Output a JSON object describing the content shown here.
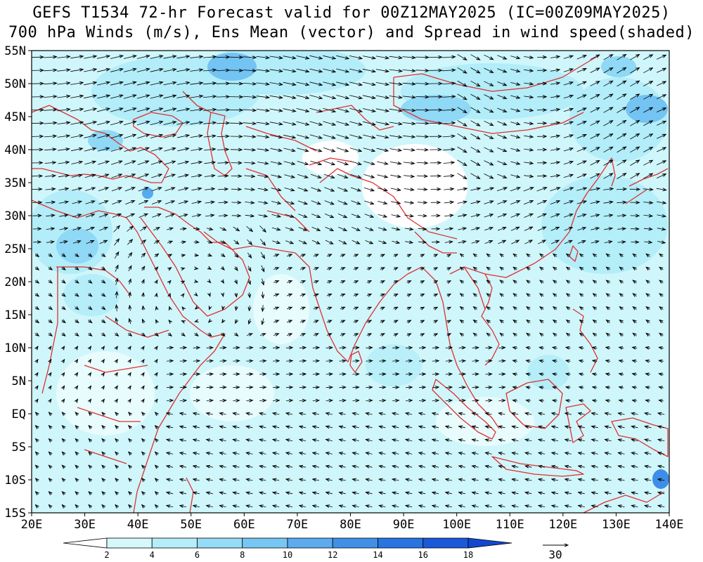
{
  "title_line1": "GEFS T1534 72-hr Forecast valid for 00Z12MAY2025 (IC=00Z09MAY2025)",
  "title_line2": "700 hPa Winds (m/s), Ens Mean (vector) and Spread in wind speed(shaded)",
  "map": {
    "lon_range": [
      20,
      140
    ],
    "lat_range": [
      -15,
      55
    ],
    "lon_ticks": [
      "20E",
      "30E",
      "40E",
      "50E",
      "60E",
      "70E",
      "80E",
      "90E",
      "100E",
      "110E",
      "120E",
      "130E",
      "140E"
    ],
    "lat_ticks": [
      "55N",
      "50N",
      "45N",
      "40N",
      "35N",
      "30N",
      "25N",
      "20N",
      "15N",
      "10N",
      "5N",
      "EQ",
      "5S",
      "10S",
      "15S"
    ],
    "coastline_color": "#e03030",
    "shading_colors": [
      "#ffffff",
      "#cff6fb",
      "#aeecf8",
      "#8fd8f6",
      "#73c3f3",
      "#56aaee",
      "#3d8ee8",
      "#2370e0",
      "#1456d8"
    ]
  },
  "colorbar": {
    "labels": [
      "2",
      "4",
      "6",
      "8",
      "10",
      "12",
      "14",
      "16",
      "18"
    ],
    "colors": [
      "#ffffff",
      "#d6f8fb",
      "#b5eef9",
      "#95dcf6",
      "#78c6f3",
      "#5cabee",
      "#4090e8",
      "#2874e0",
      "#1a5ad8",
      "#1248d0"
    ]
  },
  "reference_vector": {
    "label": "30"
  }
}
